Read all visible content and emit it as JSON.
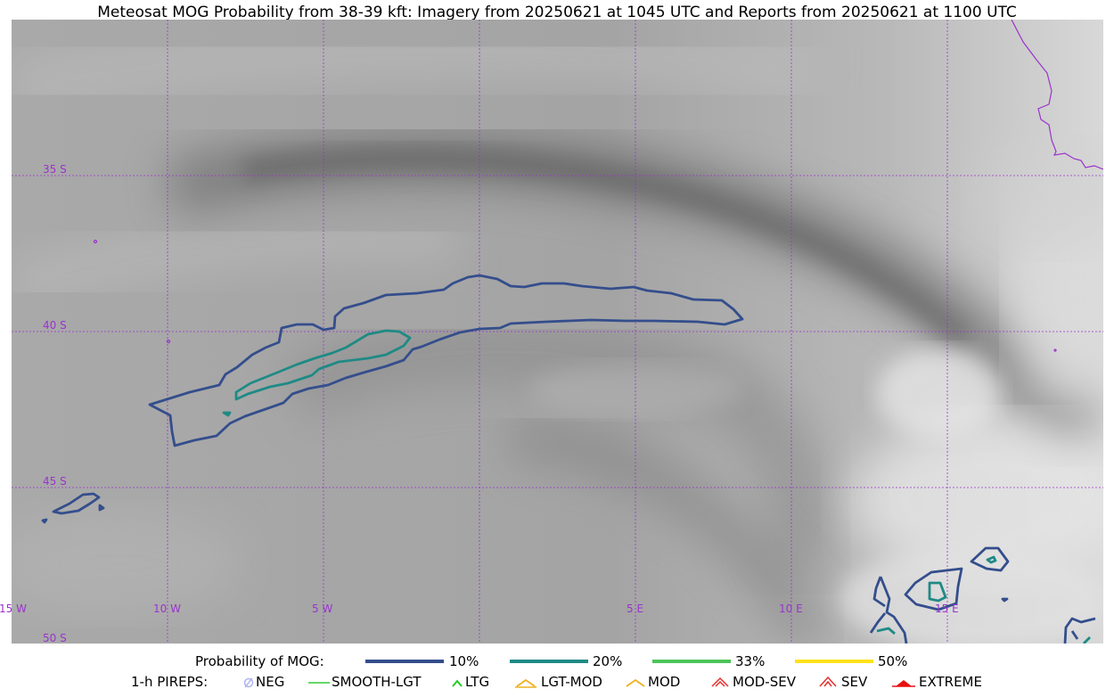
{
  "title": "Meteosat MOG Probability from 38-39 kft: Imagery from 20250621 at 1045 UTC and Reports from 20250621 at 1100 UTC",
  "map": {
    "lat_labels": [
      "35 S",
      "40 S",
      "45 S",
      "50 S"
    ],
    "lon_labels": [
      "15 W",
      "10 W",
      "5 W",
      "5 E",
      "10 E",
      "15 E"
    ],
    "gridline_color": "#9933cc",
    "background": "water vapor imagery (grayscale)"
  },
  "legend": {
    "probability_title": "Probability of MOG:",
    "probability_items": [
      {
        "label": "10%",
        "color": "#344e8c"
      },
      {
        "label": "20%",
        "color": "#1f8a85"
      },
      {
        "label": "33%",
        "color": "#4cc45a"
      },
      {
        "label": "50%",
        "color": "#ffe11a"
      }
    ],
    "pireps_title": "1-h PIREPS:",
    "pireps_items": [
      {
        "label": "NEG",
        "color": "#b0b4f0",
        "icon": "neg-circle-icon"
      },
      {
        "label": "SMOOTH-LGT",
        "color": "#33cc33",
        "icon": "smooth-line-icon"
      },
      {
        "label": "LTG",
        "color": "#22cc22",
        "icon": "chevron-icon"
      },
      {
        "label": "LGT-MOD",
        "color": "#f0b020",
        "icon": "lgt-mod-icon"
      },
      {
        "label": "MOD",
        "color": "#f0b020",
        "icon": "mod-chevron-icon"
      },
      {
        "label": "MOD-SEV",
        "color": "#e83030",
        "icon": "mod-sev-icon"
      },
      {
        "label": "SEV",
        "color": "#e83030",
        "icon": "sev-icon"
      },
      {
        "label": "EXTREME",
        "color": "#e81010",
        "icon": "extreme-icon"
      }
    ]
  }
}
